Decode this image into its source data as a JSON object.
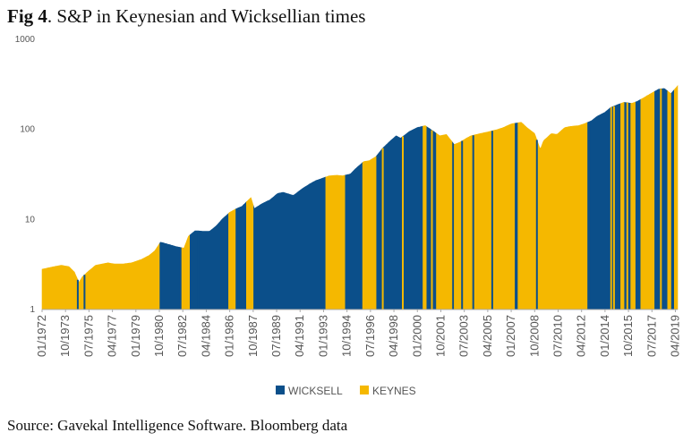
{
  "figure": {
    "label": "Fig 4",
    "title": ". S&P in Keynesian and Wicksellian times",
    "source": "Source: Gavekal Intelligence Software. Bloomberg data"
  },
  "chart_data": {
    "type": "area",
    "title": "S&P in Keynesian and Wicksellian times",
    "y_scale": "log",
    "ylim": [
      1,
      1000
    ],
    "y_ticks": [
      "1",
      "10",
      "100",
      "1000"
    ],
    "x_tick_labels": [
      "01/1972",
      "10/1973",
      "07/1975",
      "04/1977",
      "01/1979",
      "10/1980",
      "07/1982",
      "04/1984",
      "01/1986",
      "10/1987",
      "07/1989",
      "04/1991",
      "01/1993",
      "10/1994",
      "07/1996",
      "04/1998",
      "01/2000",
      "10/2001",
      "07/2003",
      "04/2005",
      "01/2007",
      "10/2008",
      "07/2010",
      "04/2012",
      "01/2014",
      "10/2015",
      "07/2017",
      "04/2019"
    ],
    "xlim": [
      "1972-01",
      "2019-06"
    ],
    "legend_position": "bottom-center",
    "colors": {
      "wicksell": "#0b4f8a",
      "keynes": "#f5b800"
    },
    "series": [
      {
        "name": "S&P",
        "x": [
          "1972-01",
          "1972-12",
          "1973-06",
          "1974-01",
          "1974-06",
          "1974-10",
          "1975-01",
          "1975-07",
          "1976-01",
          "1976-12",
          "1977-06",
          "1978-01",
          "1978-09",
          "1979-06",
          "1980-01",
          "1980-06",
          "1980-11",
          "1981-06",
          "1982-01",
          "1982-08",
          "1982-12",
          "1983-06",
          "1984-01",
          "1984-07",
          "1985-01",
          "1985-06",
          "1986-01",
          "1986-06",
          "1986-12",
          "1987-08",
          "1987-11",
          "1988-06",
          "1989-01",
          "1989-08",
          "1990-01",
          "1990-10",
          "1991-06",
          "1992-01",
          "1992-06",
          "1993-01",
          "1993-06",
          "1994-01",
          "1994-06",
          "1995-01",
          "1995-06",
          "1996-01",
          "1996-06",
          "1996-12",
          "1997-06",
          "1998-01",
          "1998-06",
          "1998-10",
          "1999-06",
          "2000-01",
          "2000-08",
          "2001-01",
          "2001-09",
          "2002-03",
          "2002-10",
          "2003-03",
          "2003-09",
          "2004-01",
          "2004-06",
          "2005-01",
          "2005-06",
          "2006-01",
          "2006-06",
          "2007-01",
          "2007-10",
          "2008-03",
          "2008-10",
          "2009-03",
          "2009-06",
          "2010-01",
          "2010-06",
          "2011-01",
          "2011-06",
          "2012-01",
          "2012-06",
          "2013-01",
          "2013-06",
          "2014-01",
          "2014-06",
          "2015-01",
          "2015-06",
          "2016-01",
          "2016-06",
          "2017-01",
          "2017-06",
          "2018-01",
          "2018-06",
          "2018-12",
          "2019-06"
        ],
        "values": [
          2.8,
          3.0,
          3.1,
          3.0,
          2.6,
          2.0,
          2.3,
          2.7,
          3.1,
          3.3,
          3.2,
          3.2,
          3.3,
          3.6,
          4.0,
          4.5,
          5.6,
          5.3,
          5.0,
          4.8,
          6.5,
          7.5,
          7.4,
          7.4,
          8.5,
          10.0,
          12.0,
          13.0,
          14.0,
          17.5,
          13.2,
          15.0,
          16.5,
          19.5,
          20.0,
          18.5,
          22.0,
          25.0,
          27.0,
          29.0,
          30.5,
          31.0,
          30.5,
          32.0,
          37.0,
          44.0,
          45.0,
          50.0,
          62.0,
          75.0,
          85.0,
          80.0,
          95.0,
          105.0,
          110.0,
          100.0,
          85.0,
          88.0,
          68.0,
          72.0,
          80.0,
          85.0,
          88.0,
          92.0,
          95.0,
          100.0,
          105.0,
          115.0,
          120.0,
          105.0,
          90.0,
          60.0,
          75.0,
          90.0,
          88.0,
          105.0,
          108.0,
          110.0,
          115.0,
          125.0,
          140.0,
          155.0,
          175.0,
          190.0,
          200.0,
          195.0,
          205.0,
          230.0,
          250.0,
          280.0,
          285.0,
          250.0,
          305.0
        ]
      }
    ],
    "regimes": [
      {
        "name": "WICKSELL",
        "periods": [
          [
            "1980-10",
            "1982-06"
          ],
          [
            "1983-01",
            "1985-12"
          ],
          [
            "1986-06",
            "1987-04"
          ],
          [
            "1987-10",
            "1993-03"
          ],
          [
            "1994-08",
            "1995-12"
          ],
          [
            "1996-12",
            "2000-06"
          ],
          [
            "2000-09",
            "2001-06"
          ],
          [
            "2002-08",
            "2002-10"
          ],
          [
            "2007-04",
            "2007-07"
          ],
          [
            "2012-09",
            "2014-06"
          ],
          [
            "2014-07",
            "2015-03"
          ],
          [
            "2015-06",
            "2015-12"
          ],
          [
            "2016-04",
            "2016-09"
          ],
          [
            "2017-09",
            "2018-09"
          ],
          [
            "2018-12",
            "2019-03"
          ]
        ]
      },
      {
        "name": "KEYNES",
        "periods": [
          [
            "1972-01",
            "1980-10"
          ],
          [
            "1982-06",
            "1983-01"
          ],
          [
            "1985-12",
            "1986-06"
          ],
          [
            "1987-04",
            "1987-10"
          ],
          [
            "1993-03",
            "1994-08"
          ],
          [
            "1995-12",
            "1996-12"
          ],
          [
            "2000-06",
            "2000-09"
          ],
          [
            "2001-06",
            "2002-08"
          ],
          [
            "2002-10",
            "2007-04"
          ],
          [
            "2007-07",
            "2012-09"
          ],
          [
            "2014-06",
            "2014-07"
          ],
          [
            "2015-03",
            "2015-06"
          ],
          [
            "2015-12",
            "2016-04"
          ],
          [
            "2016-09",
            "2017-09"
          ],
          [
            "2018-09",
            "2018-12"
          ],
          [
            "2019-03",
            "2019-06"
          ]
        ]
      }
    ],
    "thin_stripes": {
      "keynes": [
        "1997-06",
        "1998-12",
        "2001-02",
        "2014-09",
        "2015-09",
        "2017-03",
        "2018-03"
      ],
      "wicksell": [
        "1974-09",
        "1975-03",
        "1983-09",
        "1986-09",
        "1987-02",
        "2003-05",
        "2004-03",
        "2005-08",
        "2008-12",
        "2012-11"
      ]
    }
  }
}
